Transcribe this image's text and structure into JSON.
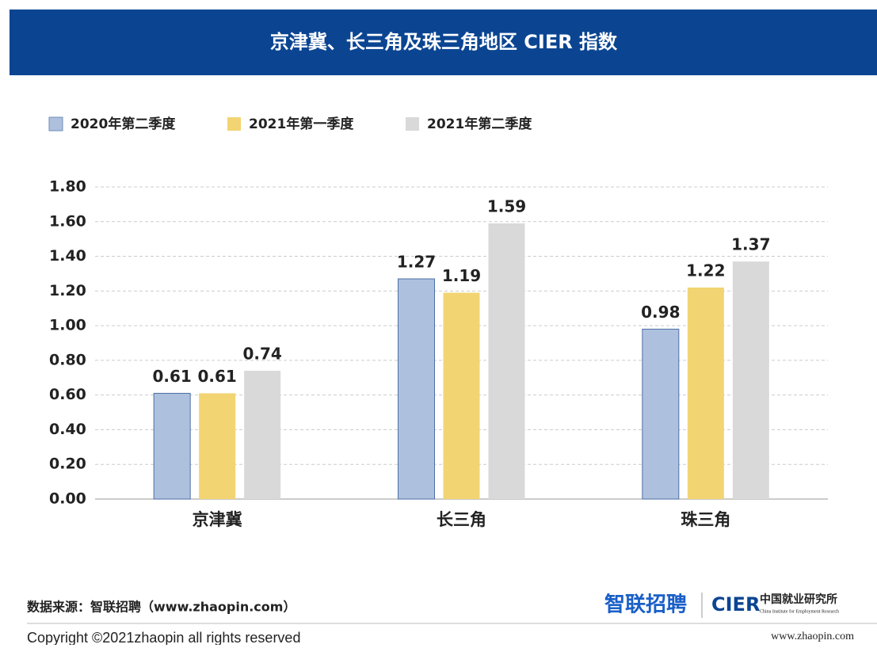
{
  "chart_data": {
    "type": "bar",
    "title": "京津冀、长三角及珠三角地区 CIER 指数",
    "categories": [
      "京津冀",
      "长三角",
      "珠三角"
    ],
    "series": [
      {
        "name": "2020年第二季度",
        "color": "#adc1de",
        "values": [
          0.61,
          1.27,
          0.98
        ]
      },
      {
        "name": "2021年第一季度",
        "color": "#f2d472",
        "values": [
          0.61,
          1.19,
          1.22
        ]
      },
      {
        "name": "2021年第二季度",
        "color": "#d9d9d9",
        "values": [
          0.74,
          1.59,
          1.37
        ]
      }
    ],
    "ylim": [
      0,
      1.8
    ],
    "yticks": [
      {
        "value": 0,
        "label": "0.00"
      },
      {
        "value": 0.2,
        "label": "0.20"
      },
      {
        "value": 0.4,
        "label": "0.40"
      },
      {
        "value": 0.6,
        "label": "0.60"
      },
      {
        "value": 0.8,
        "label": "0.80"
      },
      {
        "value": 1,
        "label": "1.00"
      },
      {
        "value": 1.2,
        "label": "1.20"
      },
      {
        "value": 1.4,
        "label": "1.40"
      },
      {
        "value": 1.6,
        "label": "1.60"
      },
      {
        "value": 1.8,
        "label": "1.80"
      }
    ],
    "grid": true,
    "legend": "top-left"
  },
  "footer": {
    "source": "数据来源：智联招聘（www.zhaopin.com）",
    "logo_zhaopin": "智联招聘",
    "logo_cier": "CIER",
    "cier_cn": "中国就业研究所",
    "cier_en": "China Institute for Employment Research",
    "copyright": "Copyright ©2021zhaopin all rights reserved",
    "website": "www.zhaopin.com"
  }
}
